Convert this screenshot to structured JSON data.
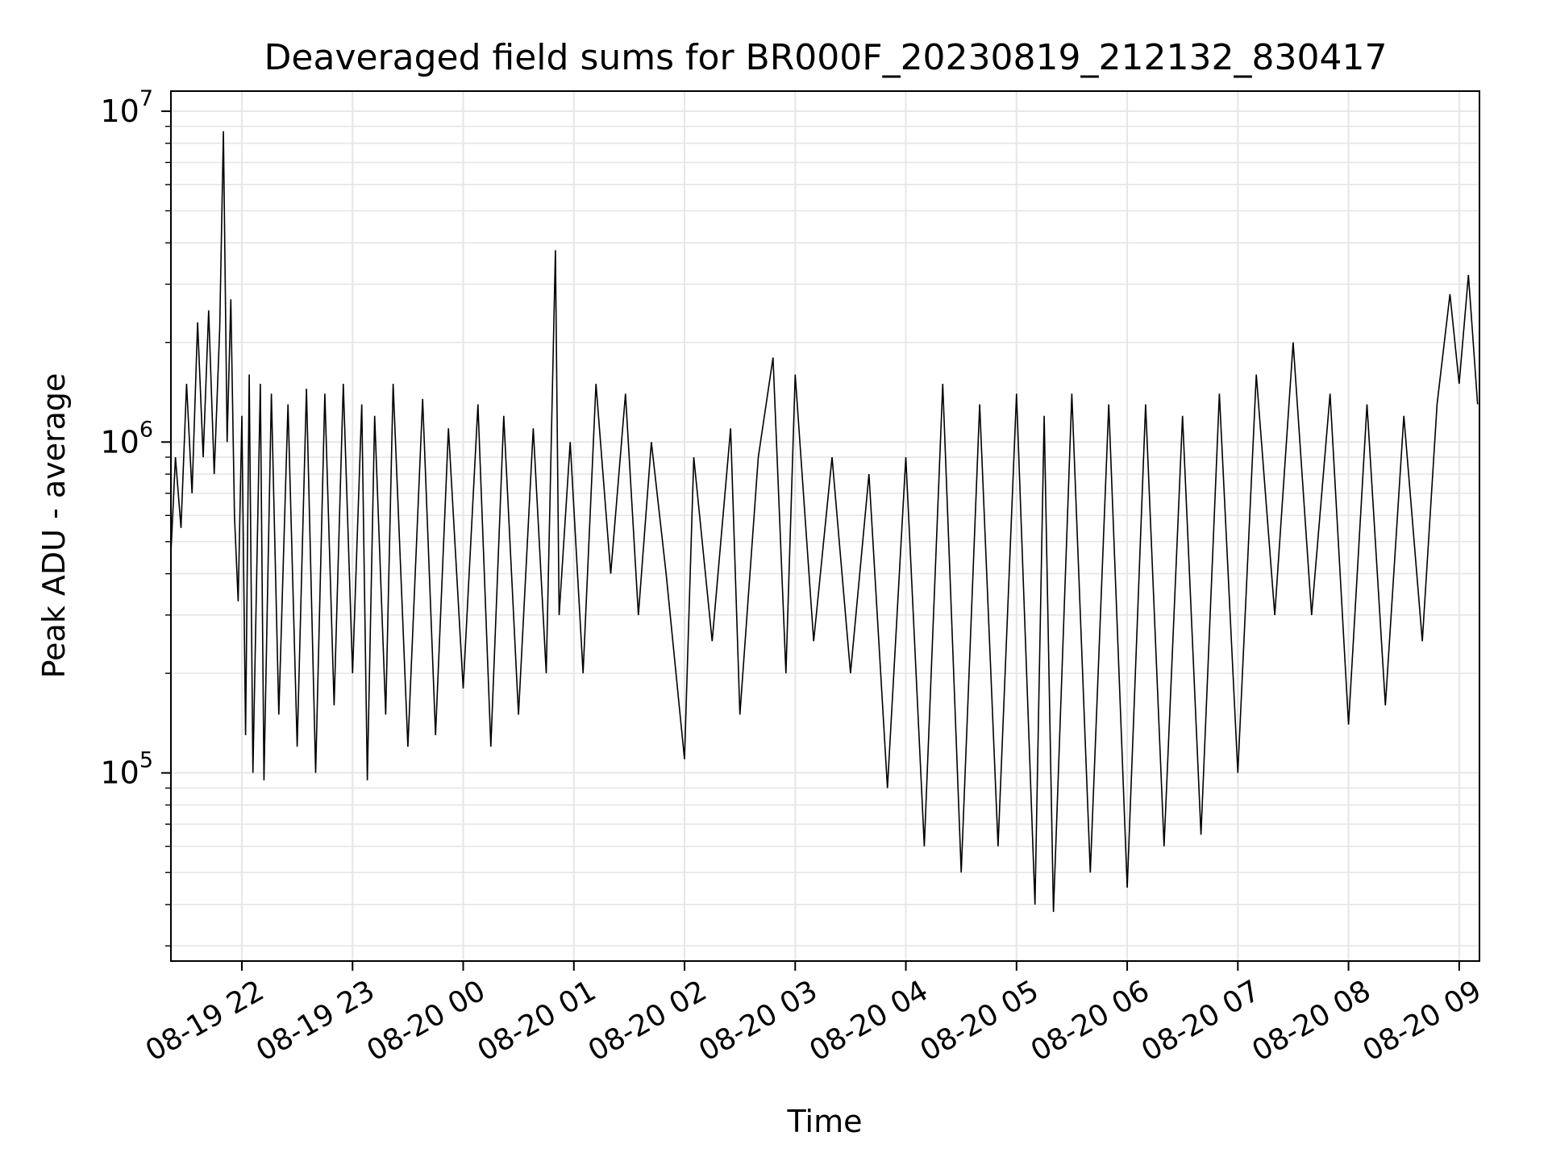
{
  "chart_data": {
    "type": "line",
    "title": "Deaveraged field sums for BR000F_20230819_212132_830417",
    "xlabel": "Time",
    "ylabel": "Peak ADU - average",
    "yscale": "log",
    "ylim": [
      27000,
      11500000
    ],
    "xlim": [
      "2023-08-19 21:21:32",
      "2023-08-20 09:11:00"
    ],
    "grid": true,
    "line_color": "#000000",
    "grid_color": "#e6e6e6",
    "yticks": [
      {
        "value": 100000,
        "base": "10",
        "exp": "5"
      },
      {
        "value": 1000000,
        "base": "10",
        "exp": "6"
      },
      {
        "value": 10000000,
        "base": "10",
        "exp": "7"
      }
    ],
    "xticks": [
      {
        "time": "2023-08-19 22:00",
        "label": "08-19 22"
      },
      {
        "time": "2023-08-19 23:00",
        "label": "08-19 23"
      },
      {
        "time": "2023-08-20 00:00",
        "label": "08-20 00"
      },
      {
        "time": "2023-08-20 01:00",
        "label": "08-20 01"
      },
      {
        "time": "2023-08-20 02:00",
        "label": "08-20 02"
      },
      {
        "time": "2023-08-20 03:00",
        "label": "08-20 03"
      },
      {
        "time": "2023-08-20 04:00",
        "label": "08-20 04"
      },
      {
        "time": "2023-08-20 05:00",
        "label": "08-20 05"
      },
      {
        "time": "2023-08-20 06:00",
        "label": "08-20 06"
      },
      {
        "time": "2023-08-20 07:00",
        "label": "08-20 07"
      },
      {
        "time": "2023-08-20 08:00",
        "label": "08-20 08"
      },
      {
        "time": "2023-08-20 09:00",
        "label": "08-20 09"
      }
    ],
    "series": [
      {
        "points": [
          [
            "2023-08-19 21:21",
            400000
          ],
          [
            "2023-08-19 21:24",
            900000
          ],
          [
            "2023-08-19 21:27",
            550000
          ],
          [
            "2023-08-19 21:30",
            1500000
          ],
          [
            "2023-08-19 21:33",
            700000
          ],
          [
            "2023-08-19 21:36",
            2300000
          ],
          [
            "2023-08-19 21:39",
            900000
          ],
          [
            "2023-08-19 21:42",
            2500000
          ],
          [
            "2023-08-19 21:45",
            800000
          ],
          [
            "2023-08-19 21:48",
            2200000
          ],
          [
            "2023-08-19 21:50",
            8700000
          ],
          [
            "2023-08-19 21:52",
            1000000
          ],
          [
            "2023-08-19 21:54",
            2700000
          ],
          [
            "2023-08-19 21:56",
            600000
          ],
          [
            "2023-08-19 21:58",
            330000
          ],
          [
            "2023-08-19 22:00",
            1200000
          ],
          [
            "2023-08-19 22:02",
            130000
          ],
          [
            "2023-08-19 22:04",
            1600000
          ],
          [
            "2023-08-19 22:06",
            100000
          ],
          [
            "2023-08-19 22:10",
            1500000
          ],
          [
            "2023-08-19 22:12",
            95000
          ],
          [
            "2023-08-19 22:16",
            1400000
          ],
          [
            "2023-08-19 22:20",
            150000
          ],
          [
            "2023-08-19 22:25",
            1300000
          ],
          [
            "2023-08-19 22:30",
            120000
          ],
          [
            "2023-08-19 22:35",
            1450000
          ],
          [
            "2023-08-19 22:40",
            100000
          ],
          [
            "2023-08-19 22:45",
            1400000
          ],
          [
            "2023-08-19 22:50",
            160000
          ],
          [
            "2023-08-19 22:55",
            1500000
          ],
          [
            "2023-08-19 23:00",
            200000
          ],
          [
            "2023-08-19 23:05",
            1300000
          ],
          [
            "2023-08-19 23:08",
            95000
          ],
          [
            "2023-08-19 23:12",
            1200000
          ],
          [
            "2023-08-19 23:18",
            150000
          ],
          [
            "2023-08-19 23:22",
            1500000
          ],
          [
            "2023-08-19 23:30",
            120000
          ],
          [
            "2023-08-19 23:38",
            1350000
          ],
          [
            "2023-08-19 23:45",
            130000
          ],
          [
            "2023-08-19 23:52",
            1100000
          ],
          [
            "2023-08-20 00:00",
            180000
          ],
          [
            "2023-08-20 00:08",
            1300000
          ],
          [
            "2023-08-20 00:15",
            120000
          ],
          [
            "2023-08-20 00:22",
            1200000
          ],
          [
            "2023-08-20 00:30",
            150000
          ],
          [
            "2023-08-20 00:38",
            1100000
          ],
          [
            "2023-08-20 00:45",
            200000
          ],
          [
            "2023-08-20 00:50",
            3800000
          ],
          [
            "2023-08-20 00:52",
            300000
          ],
          [
            "2023-08-20 00:58",
            1000000
          ],
          [
            "2023-08-20 01:05",
            200000
          ],
          [
            "2023-08-20 01:12",
            1500000
          ],
          [
            "2023-08-20 01:20",
            400000
          ],
          [
            "2023-08-20 01:28",
            1400000
          ],
          [
            "2023-08-20 01:35",
            300000
          ],
          [
            "2023-08-20 01:42",
            1000000
          ],
          [
            "2023-08-20 01:50",
            400000
          ],
          [
            "2023-08-20 02:00",
            110000
          ],
          [
            "2023-08-20 02:05",
            900000
          ],
          [
            "2023-08-20 02:15",
            250000
          ],
          [
            "2023-08-20 02:25",
            1100000
          ],
          [
            "2023-08-20 02:30",
            150000
          ],
          [
            "2023-08-20 02:40",
            900000
          ],
          [
            "2023-08-20 02:48",
            1800000
          ],
          [
            "2023-08-20 02:55",
            200000
          ],
          [
            "2023-08-20 03:00",
            1600000
          ],
          [
            "2023-08-20 03:10",
            250000
          ],
          [
            "2023-08-20 03:20",
            900000
          ],
          [
            "2023-08-20 03:30",
            200000
          ],
          [
            "2023-08-20 03:40",
            800000
          ],
          [
            "2023-08-20 03:50",
            90000
          ],
          [
            "2023-08-20 04:00",
            900000
          ],
          [
            "2023-08-20 04:10",
            60000
          ],
          [
            "2023-08-20 04:20",
            1500000
          ],
          [
            "2023-08-20 04:30",
            50000
          ],
          [
            "2023-08-20 04:40",
            1300000
          ],
          [
            "2023-08-20 04:50",
            60000
          ],
          [
            "2023-08-20 05:00",
            1400000
          ],
          [
            "2023-08-20 05:10",
            40000
          ],
          [
            "2023-08-20 05:15",
            1200000
          ],
          [
            "2023-08-20 05:20",
            38000
          ],
          [
            "2023-08-20 05:30",
            1400000
          ],
          [
            "2023-08-20 05:40",
            50000
          ],
          [
            "2023-08-20 05:50",
            1300000
          ],
          [
            "2023-08-20 06:00",
            45000
          ],
          [
            "2023-08-20 06:10",
            1300000
          ],
          [
            "2023-08-20 06:20",
            60000
          ],
          [
            "2023-08-20 06:30",
            1200000
          ],
          [
            "2023-08-20 06:40",
            65000
          ],
          [
            "2023-08-20 06:50",
            1400000
          ],
          [
            "2023-08-20 07:00",
            100000
          ],
          [
            "2023-08-20 07:10",
            1600000
          ],
          [
            "2023-08-20 07:20",
            300000
          ],
          [
            "2023-08-20 07:30",
            2000000
          ],
          [
            "2023-08-20 07:40",
            300000
          ],
          [
            "2023-08-20 07:50",
            1400000
          ],
          [
            "2023-08-20 08:00",
            140000
          ],
          [
            "2023-08-20 08:10",
            1300000
          ],
          [
            "2023-08-20 08:20",
            160000
          ],
          [
            "2023-08-20 08:30",
            1200000
          ],
          [
            "2023-08-20 08:40",
            250000
          ],
          [
            "2023-08-20 08:48",
            1300000
          ],
          [
            "2023-08-20 08:55",
            2800000
          ],
          [
            "2023-08-20 09:00",
            1500000
          ],
          [
            "2023-08-20 09:05",
            3200000
          ],
          [
            "2023-08-20 09:10",
            1300000
          ]
        ]
      }
    ]
  }
}
